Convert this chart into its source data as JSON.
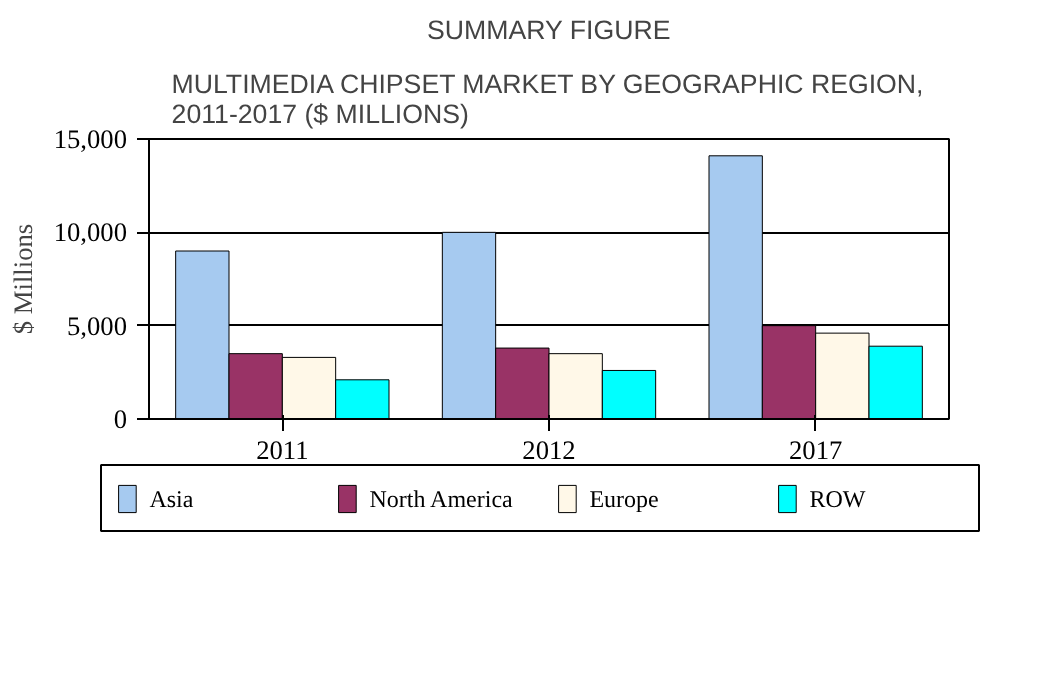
{
  "chart_data": {
    "type": "bar",
    "title": "SUMMARY FIGURE",
    "subtitle": "MULTIMEDIA CHIPSET MARKET BY GEOGRAPHIC REGION, 2011-2017 ($ MILLIONS)",
    "ylabel": "$ Millions",
    "categories": [
      "2011",
      "2012",
      "2017"
    ],
    "series": [
      {
        "name": "Asia",
        "color": "#a6caf0",
        "values": [
          9000,
          10000,
          14100
        ]
      },
      {
        "name": "North America",
        "color": "#993366",
        "values": [
          3500,
          3800,
          5000
        ]
      },
      {
        "name": "Europe",
        "color": "#fff8e8",
        "values": [
          3300,
          3500,
          4600
        ]
      },
      {
        "name": "ROW",
        "color": "#00ffff",
        "values": [
          2100,
          2600,
          3900
        ]
      }
    ],
    "ylim": [
      0,
      15000
    ],
    "yticks": [
      {
        "value": 0,
        "label": "0"
      },
      {
        "value": 5000,
        "label": "5,000"
      },
      {
        "value": 10000,
        "label": "10,000"
      },
      {
        "value": 15000,
        "label": "15,000"
      }
    ],
    "grid": "y",
    "legend": "bottom"
  }
}
